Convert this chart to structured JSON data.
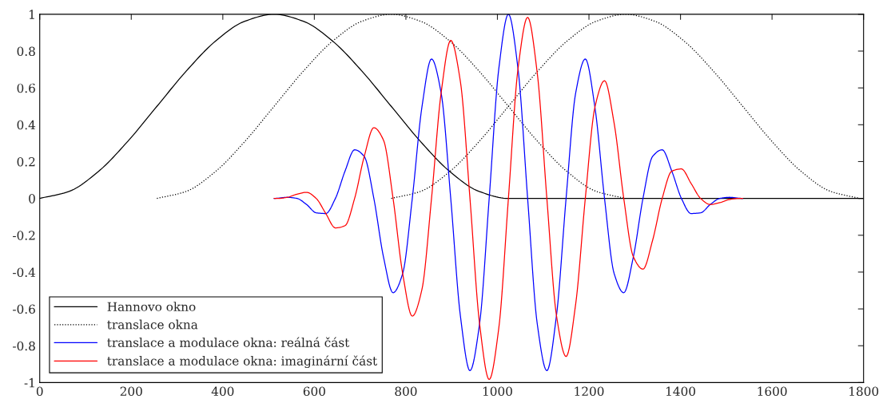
{
  "chart_data": {
    "type": "line",
    "xlim": [
      0,
      1800
    ],
    "xticks": [
      0,
      200,
      400,
      600,
      800,
      1000,
      1200,
      1400,
      1600,
      1800
    ],
    "ylim": [
      -1,
      1
    ],
    "yticks": [
      -1,
      -0.8,
      -0.6,
      -0.4,
      -0.2,
      0,
      0.2,
      0.4,
      0.6,
      0.8,
      1
    ],
    "grid": false,
    "legend": "bottom left",
    "series": [
      {
        "name": "Hannovo okno",
        "color": "#000000",
        "line_style": "solid",
        "x": [
          0,
          64,
          128,
          192,
          256,
          320,
          384,
          448,
          512,
          576,
          640,
          704,
          768,
          832,
          896,
          960,
          1024,
          1800
        ],
        "values": [
          0,
          0.038,
          0.146,
          0.309,
          0.5,
          0.691,
          0.854,
          0.962,
          1,
          0.962,
          0.854,
          0.691,
          0.5,
          0.309,
          0.146,
          0.038,
          0,
          0
        ]
      },
      {
        "name": "translace okna",
        "color": "#000000",
        "line_style": "dotted",
        "x": [
          256,
          320,
          384,
          448,
          512,
          576,
          640,
          704,
          768,
          832,
          896,
          960,
          1024,
          1088,
          1152,
          1216,
          1280
        ],
        "values": [
          0,
          0.038,
          0.146,
          0.309,
          0.5,
          0.691,
          0.854,
          0.962,
          1,
          0.962,
          0.854,
          0.691,
          0.5,
          0.309,
          0.146,
          0.038,
          0
        ]
      },
      {
        "color": "#000000",
        "line_style": "dotted",
        "x": [
          768,
          832,
          896,
          960,
          1024,
          1088,
          1152,
          1216,
          1280,
          1344,
          1408,
          1472,
          1536,
          1600,
          1664,
          1728,
          1792
        ],
        "values": [
          0,
          0.038,
          0.146,
          0.309,
          0.5,
          0.691,
          0.854,
          0.962,
          1,
          0.962,
          0.854,
          0.691,
          0.5,
          0.309,
          0.146,
          0.038,
          0
        ]
      },
      {
        "name": "translace a modulace okna: reálná část",
        "color": "#0000ff",
        "line_style": "solid",
        "x": [
          512,
          520,
          541,
          562,
          583,
          604,
          625,
          646,
          667,
          688,
          709,
          730,
          751,
          772,
          793,
          814,
          835,
          856,
          877,
          898,
          919,
          940,
          961,
          982,
          1003,
          1024,
          1045,
          1066,
          1087,
          1108,
          1129,
          1150,
          1171,
          1192,
          1213,
          1234,
          1255,
          1276,
          1297,
          1318,
          1339,
          1360,
          1381,
          1402,
          1423,
          1444,
          1465,
          1486,
          1507,
          1528,
          1536
        ],
        "values": [
          0,
          0.001,
          0.006,
          0,
          -0.033,
          -0.078,
          -0.082,
          0,
          0.148,
          0.264,
          0.228,
          0,
          -0.317,
          -0.512,
          -0.408,
          0,
          0.495,
          0.757,
          0.573,
          0,
          -0.636,
          -0.935,
          -0.681,
          0,
          0.704,
          1,
          0.704,
          0,
          -0.681,
          -0.935,
          -0.636,
          0,
          0.573,
          0.757,
          0.495,
          0,
          -0.408,
          -0.512,
          -0.317,
          0,
          0.228,
          0.264,
          0.148,
          0,
          -0.082,
          -0.078,
          -0.033,
          0,
          0.006,
          0.001,
          0
        ]
      },
      {
        "name": "translace a modulace okna: imaginární část",
        "color": "#ff0000",
        "line_style": "solid",
        "x": [
          512,
          520,
          541,
          562,
          583,
          604,
          625,
          646,
          667,
          688,
          709,
          730,
          751,
          772,
          793,
          814,
          835,
          856,
          877,
          898,
          919,
          940,
          961,
          982,
          1003,
          1024,
          1045,
          1066,
          1087,
          1108,
          1129,
          1150,
          1171,
          1192,
          1213,
          1234,
          1255,
          1276,
          1297,
          1318,
          1339,
          1360,
          1381,
          1402,
          1423,
          1444,
          1465,
          1486,
          1507,
          1528,
          1536
        ],
        "values": [
          0,
          0,
          0.006,
          0.023,
          0.033,
          0,
          -0.082,
          -0.16,
          -0.148,
          0,
          0.228,
          0.384,
          0.317,
          0,
          -0.408,
          -0.639,
          -0.495,
          0,
          0.573,
          0.858,
          0.636,
          0,
          -0.681,
          -0.983,
          -0.704,
          0,
          0.704,
          0.983,
          0.681,
          0,
          -0.636,
          -0.858,
          -0.573,
          0,
          0.495,
          0.639,
          0.408,
          0,
          -0.317,
          -0.384,
          -0.228,
          0,
          0.148,
          0.16,
          0.082,
          0,
          -0.033,
          -0.023,
          -0.006,
          0,
          0
        ]
      }
    ]
  }
}
